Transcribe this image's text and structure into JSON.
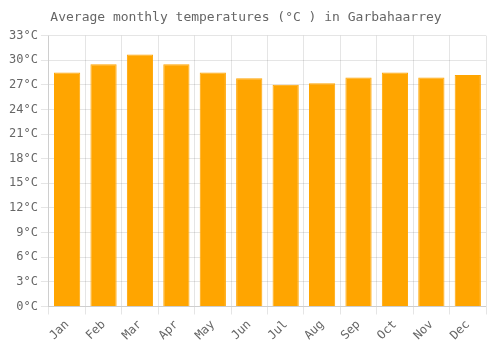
{
  "chart_data": {
    "type": "bar",
    "title": "Average monthly temperatures (°C ) in Garbahaarrey",
    "categories": [
      "Jan",
      "Feb",
      "Mar",
      "Apr",
      "May",
      "Jun",
      "Jul",
      "Aug",
      "Sep",
      "Oct",
      "Nov",
      "Dec"
    ],
    "values": [
      28.5,
      29.5,
      30.7,
      29.5,
      28.5,
      27.8,
      27.0,
      27.2,
      27.9,
      28.5,
      27.9,
      28.2
    ],
    "color": "#FFA500",
    "ylim": [
      0,
      33
    ],
    "yticks": [
      {
        "value": 0,
        "label": "0°C"
      },
      {
        "value": 3,
        "label": "3°C"
      },
      {
        "value": 6,
        "label": "6°C"
      },
      {
        "value": 9,
        "label": "9°C"
      },
      {
        "value": 12,
        "label": "12°C"
      },
      {
        "value": 15,
        "label": "15°C"
      },
      {
        "value": 18,
        "label": "18°C"
      },
      {
        "value": 21,
        "label": "21°C"
      },
      {
        "value": 24,
        "label": "24°C"
      },
      {
        "value": 27,
        "label": "27°C"
      },
      {
        "value": 30,
        "label": "30°C"
      },
      {
        "value": 33,
        "label": "33°C"
      }
    ],
    "grid": true
  }
}
